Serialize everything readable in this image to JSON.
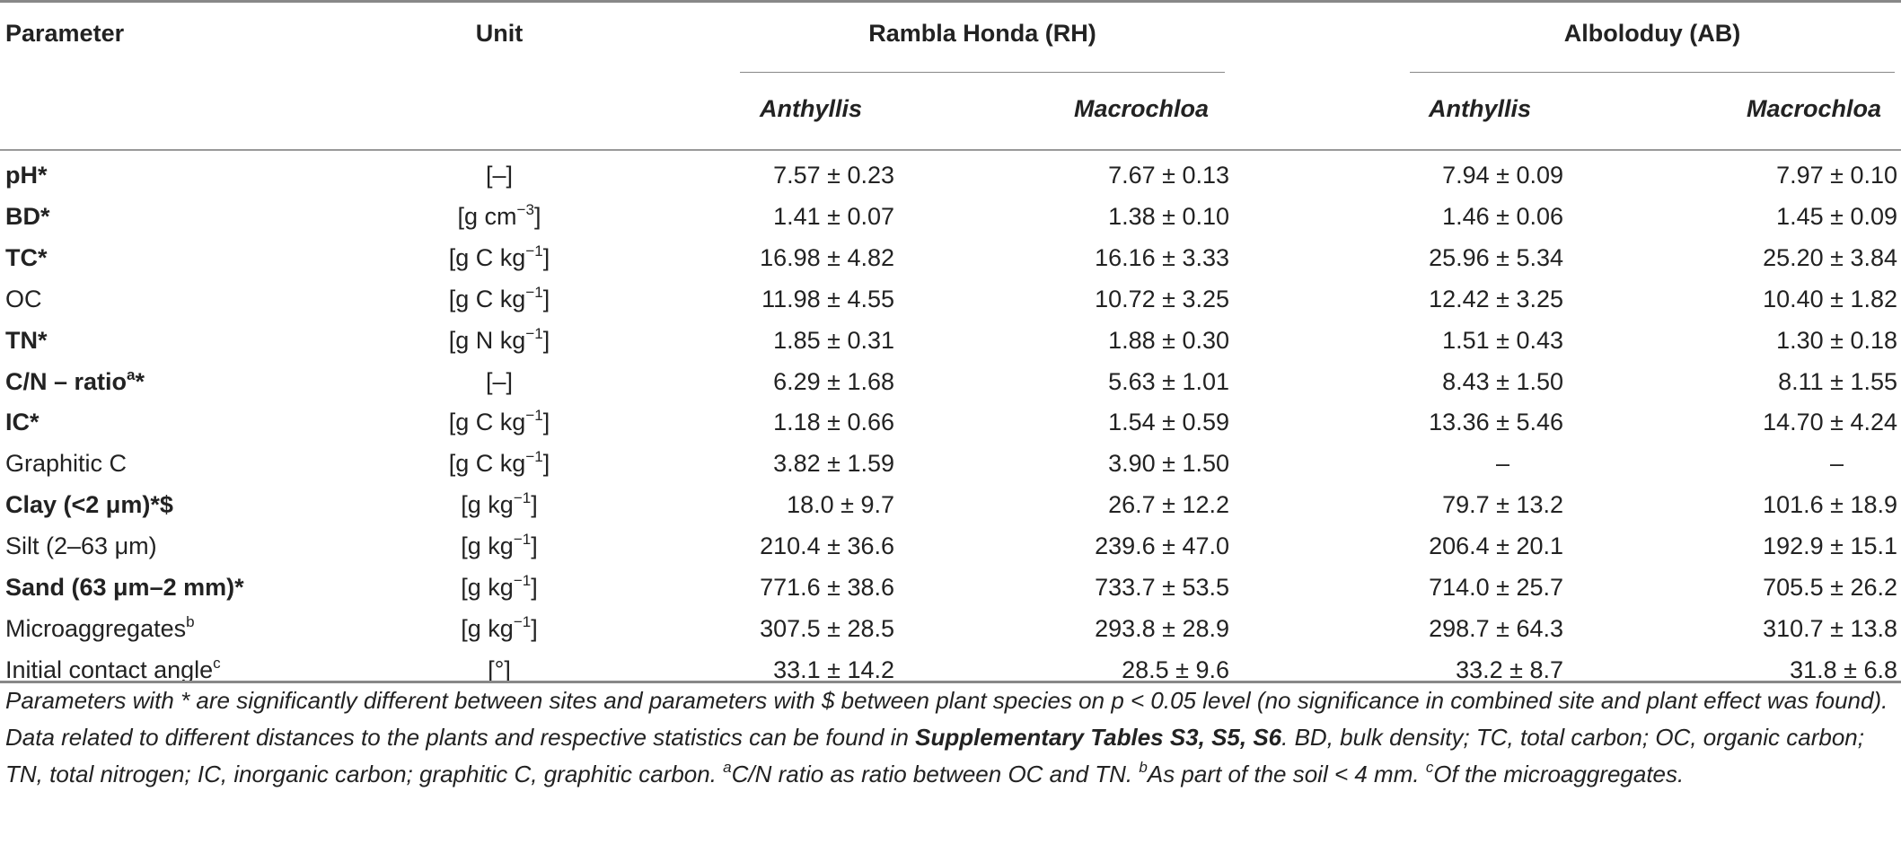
{
  "headers": {
    "parameter": "Parameter",
    "unit": "Unit",
    "site1": "Rambla Honda (RH)",
    "site2": "Alboloduy (AB)",
    "species1": "Anthyllis",
    "species2": "Macrochloa"
  },
  "rows": [
    {
      "param": "pH*",
      "sup": "",
      "bold": true,
      "unit": "[–]",
      "unit_sup": "",
      "unit_tail": "",
      "v1": "7.57 ± 0.23",
      "v2": "7.67 ± 0.13",
      "v3": "7.94 ± 0.09",
      "v4": "7.97 ± 0.10"
    },
    {
      "param": "BD*",
      "sup": "",
      "bold": true,
      "unit": "[g cm",
      "unit_sup": "−3",
      "unit_tail": "]",
      "v1": "1.41 ± 0.07",
      "v2": "1.38 ± 0.10",
      "v3": "1.46 ± 0.06",
      "v4": "1.45 ± 0.09"
    },
    {
      "param": "TC*",
      "sup": "",
      "bold": true,
      "unit": "[g C kg",
      "unit_sup": "−1",
      "unit_tail": "]",
      "v1": "16.98 ± 4.82",
      "v2": "16.16 ± 3.33",
      "v3": "25.96 ± 5.34",
      "v4": "25.20 ± 3.84"
    },
    {
      "param": "OC",
      "sup": "",
      "bold": false,
      "unit": "[g C kg",
      "unit_sup": "−1",
      "unit_tail": "]",
      "v1": "11.98 ± 4.55",
      "v2": "10.72 ± 3.25",
      "v3": "12.42 ± 3.25",
      "v4": "10.40 ± 1.82"
    },
    {
      "param": "TN*",
      "sup": "",
      "bold": true,
      "unit": "[g N kg",
      "unit_sup": "−1",
      "unit_tail": "]",
      "v1": "1.85 ± 0.31",
      "v2": "1.88 ± 0.30",
      "v3": "1.51 ± 0.43",
      "v4": "1.30 ± 0.18"
    },
    {
      "param": "C/N – ratio",
      "sup": "a",
      "bold": true,
      "param_tail": "*",
      "unit": "[–]",
      "unit_sup": "",
      "unit_tail": "",
      "v1": "6.29 ± 1.68",
      "v2": "5.63 ± 1.01",
      "v3": "8.43 ± 1.50",
      "v4": "8.11 ± 1.55"
    },
    {
      "param": "IC*",
      "sup": "",
      "bold": true,
      "unit": "[g C kg",
      "unit_sup": "−1",
      "unit_tail": "]",
      "v1": "1.18 ± 0.66",
      "v2": "1.54 ± 0.59",
      "v3": "13.36 ± 5.46",
      "v4": "14.70 ± 4.24"
    },
    {
      "param": "Graphitic C",
      "sup": "",
      "bold": false,
      "unit": "[g C kg",
      "unit_sup": "−1",
      "unit_tail": "]",
      "v1": "3.82 ± 1.59",
      "v2": "3.90 ± 1.50",
      "v3": "–",
      "v4": "–"
    },
    {
      "param": "Clay (<2 μm)*$",
      "sup": "",
      "bold": true,
      "unit": "[g kg",
      "unit_sup": "−1",
      "unit_tail": "]",
      "v1": "18.0 ± 9.7",
      "v2": "26.7 ± 12.2",
      "v3": "79.7 ± 13.2",
      "v4": "101.6 ± 18.9"
    },
    {
      "param": "Silt (2–63 μm)",
      "sup": "",
      "bold": false,
      "unit": "[g kg",
      "unit_sup": "−1",
      "unit_tail": "]",
      "v1": "210.4 ± 36.6",
      "v2": "239.6 ± 47.0",
      "v3": "206.4 ± 20.1",
      "v4": "192.9 ± 15.1"
    },
    {
      "param": "Sand (63 μm–2 mm)*",
      "sup": "",
      "bold": true,
      "unit": "[g kg",
      "unit_sup": "−1",
      "unit_tail": "]",
      "v1": "771.6 ± 38.6",
      "v2": "733.7 ± 53.5",
      "v3": "714.0 ± 25.7",
      "v4": "705.5 ± 26.2"
    },
    {
      "param": "Microaggregates",
      "sup": "b",
      "bold": false,
      "unit": "[g kg",
      "unit_sup": "−1",
      "unit_tail": "]",
      "v1": "307.5 ± 28.5",
      "v2": "293.8 ± 28.9",
      "v3": "298.7 ± 64.3",
      "v4": "310.7 ± 13.8"
    },
    {
      "param": "Initial contact angle",
      "sup": "c",
      "bold": false,
      "unit": "[°]",
      "unit_sup": "",
      "unit_tail": "",
      "v1": "33.1 ± 14.2",
      "v2": "28.5 ± 9.6",
      "v3": "33.2 ± 8.7",
      "v4": "31.8 ± 6.8"
    }
  ],
  "footnote": {
    "part1": "Parameters with * are significantly different between sites and parameters with $ between plant species on p < 0.05 level (no significance in combined site and plant effect was found). Data related to different distances to the plants and respective statistics can be found in ",
    "bold_ref": "Supplementary Tables S3, S5, S6",
    "part2": ". BD, bulk density; TC, total carbon; OC, organic carbon; TN, total nitrogen; IC, inorganic carbon; graphitic C, graphitic carbon. ",
    "sup_a": "a",
    "note_a": "C/N ratio as ratio between OC and TN. ",
    "sup_b": "b",
    "note_b": "As part of the soil < 4 mm. ",
    "sup_c": "c",
    "note_c": "Of the microaggregates."
  }
}
